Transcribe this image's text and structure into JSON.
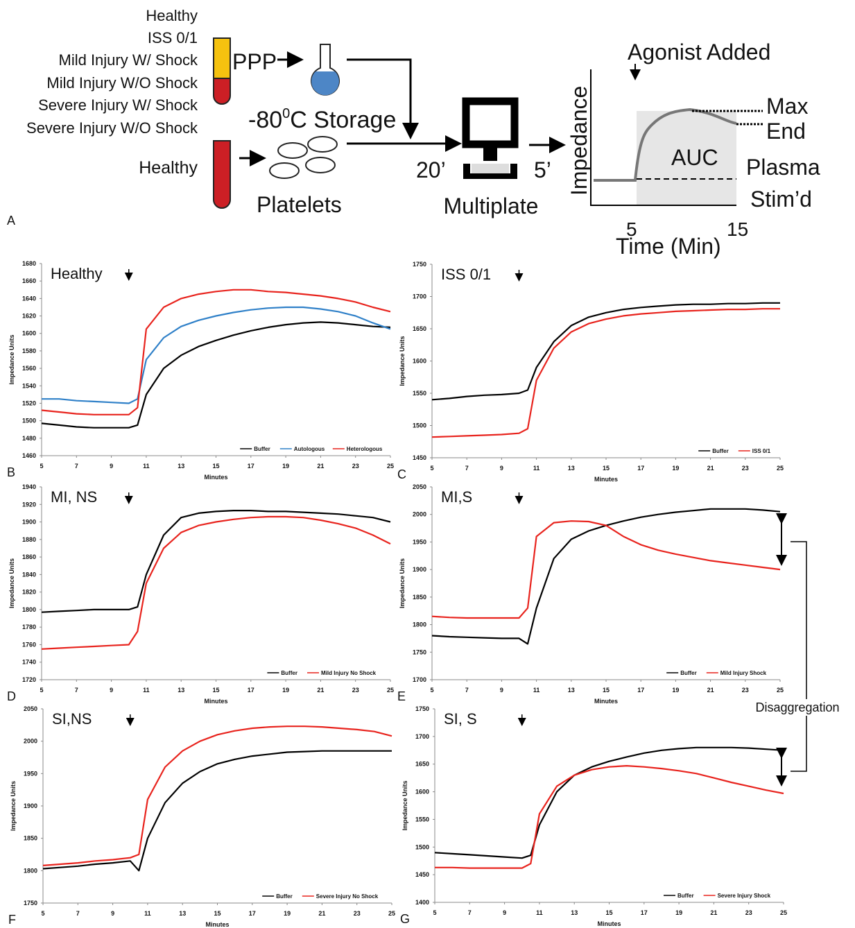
{
  "panel_a": {
    "label": "A",
    "groups": [
      "Healthy",
      "ISS 0/1",
      "Mild Injury W/ Shock",
      "Mild Injury W/O Shock",
      "Severe Injury W/ Shock",
      "Severe Injury W/O Shock"
    ],
    "ppp": "PPP",
    "storage": [
      "-80",
      "0",
      "C Storage"
    ],
    "donor": "Healthy",
    "platelets": "Platelets",
    "t1": "20’",
    "t2": "5’",
    "device": "Multiplate",
    "agonist": "Agonist Added",
    "inset_ylabel": "Impedance",
    "inset_xlabel": "Time (Min)",
    "inset_xticks": [
      "5",
      "15"
    ],
    "max": "Max",
    "end": "End",
    "auc": "AUC",
    "plasma": "Plasma",
    "stimd": "Stim’d"
  },
  "annotation": "Disaggregation",
  "chart_data": [
    {
      "type": "line",
      "title": "Healthy",
      "panel": "B",
      "xlabel": "Minutes",
      "ylabel": "Impedance Units",
      "x": [
        5,
        6,
        7,
        8,
        9,
        10,
        10.5,
        11,
        12,
        13,
        14,
        15,
        16,
        17,
        18,
        19,
        20,
        21,
        22,
        23,
        24,
        25
      ],
      "xlim": [
        5,
        25
      ],
      "xticks": [
        5,
        7,
        9,
        11,
        13,
        15,
        17,
        19,
        21,
        23,
        25
      ],
      "ylim": [
        1460,
        1680
      ],
      "yticks": [
        1460,
        1480,
        1500,
        1520,
        1540,
        1560,
        1580,
        1600,
        1620,
        1640,
        1660,
        1680
      ],
      "series": [
        {
          "name": "Buffer",
          "color": "#000000",
          "values": [
            1497,
            1495,
            1493,
            1492,
            1492,
            1492,
            1495,
            1530,
            1560,
            1575,
            1585,
            1592,
            1598,
            1603,
            1607,
            1610,
            1612,
            1613,
            1612,
            1610,
            1608,
            1607
          ]
        },
        {
          "name": "Autologous",
          "color": "#2f80c8",
          "values": [
            1525,
            1525,
            1523,
            1522,
            1521,
            1520,
            1525,
            1570,
            1595,
            1608,
            1615,
            1620,
            1624,
            1627,
            1629,
            1630,
            1630,
            1628,
            1625,
            1620,
            1612,
            1605
          ]
        },
        {
          "name": "Heterologous",
          "color": "#e8231d",
          "values": [
            1512,
            1510,
            1508,
            1507,
            1507,
            1507,
            1515,
            1605,
            1630,
            1640,
            1645,
            1648,
            1650,
            1650,
            1648,
            1647,
            1645,
            1643,
            1640,
            1636,
            1630,
            1625
          ]
        }
      ]
    },
    {
      "type": "line",
      "title": "ISS 0/1",
      "panel": "C",
      "xlabel": "Minutes",
      "ylabel": "Impedance Units",
      "x": [
        5,
        6,
        7,
        8,
        9,
        10,
        10.5,
        11,
        12,
        13,
        14,
        15,
        16,
        17,
        18,
        19,
        20,
        21,
        22,
        23,
        24,
        25
      ],
      "xlim": [
        5,
        25
      ],
      "xticks": [
        5,
        7,
        9,
        11,
        13,
        15,
        17,
        19,
        21,
        23,
        25
      ],
      "ylim": [
        1450,
        1750
      ],
      "yticks": [
        1450,
        1500,
        1550,
        1600,
        1650,
        1700,
        1750
      ],
      "series": [
        {
          "name": "Buffer",
          "color": "#000000",
          "values": [
            1540,
            1542,
            1545,
            1547,
            1548,
            1550,
            1555,
            1590,
            1630,
            1655,
            1668,
            1675,
            1680,
            1683,
            1685,
            1687,
            1688,
            1688,
            1689,
            1689,
            1690,
            1690
          ]
        },
        {
          "name": "ISS 0/1",
          "color": "#e8231d",
          "values": [
            1482,
            1483,
            1484,
            1485,
            1486,
            1488,
            1495,
            1570,
            1620,
            1645,
            1658,
            1665,
            1670,
            1673,
            1675,
            1677,
            1678,
            1679,
            1680,
            1680,
            1681,
            1681
          ]
        }
      ]
    },
    {
      "type": "line",
      "title": "MI, NS",
      "panel": "D",
      "xlabel": "Minutes",
      "ylabel": "Impedance Units",
      "x": [
        5,
        6,
        7,
        8,
        9,
        10,
        10.5,
        11,
        12,
        13,
        14,
        15,
        16,
        17,
        18,
        19,
        20,
        21,
        22,
        23,
        24,
        25
      ],
      "xlim": [
        5,
        25
      ],
      "xticks": [
        5,
        7,
        9,
        11,
        13,
        15,
        17,
        19,
        21,
        23,
        25
      ],
      "ylim": [
        1720,
        1940
      ],
      "yticks": [
        1720,
        1740,
        1760,
        1780,
        1800,
        1820,
        1840,
        1860,
        1880,
        1900,
        1920,
        1940
      ],
      "series": [
        {
          "name": "Buffer",
          "color": "#000000",
          "values": [
            1797,
            1798,
            1799,
            1800,
            1800,
            1800,
            1803,
            1840,
            1885,
            1905,
            1910,
            1912,
            1913,
            1913,
            1912,
            1912,
            1911,
            1910,
            1909,
            1907,
            1905,
            1900
          ]
        },
        {
          "name": "Mild Injury No Shock",
          "color": "#e8231d",
          "values": [
            1755,
            1756,
            1757,
            1758,
            1759,
            1760,
            1775,
            1830,
            1870,
            1888,
            1896,
            1900,
            1903,
            1905,
            1906,
            1906,
            1905,
            1902,
            1898,
            1893,
            1885,
            1875
          ]
        }
      ]
    },
    {
      "type": "line",
      "title": "MI,S",
      "panel": "E",
      "xlabel": "Minutes",
      "ylabel": "Impedance Units",
      "x": [
        5,
        6,
        7,
        8,
        9,
        10,
        10.5,
        11,
        12,
        13,
        14,
        15,
        16,
        17,
        18,
        19,
        20,
        21,
        22,
        23,
        24,
        25
      ],
      "xlim": [
        5,
        25
      ],
      "xticks": [
        5,
        7,
        9,
        11,
        13,
        15,
        17,
        19,
        21,
        23,
        25
      ],
      "ylim": [
        1700,
        2050
      ],
      "yticks": [
        1700,
        1750,
        1800,
        1850,
        1900,
        1950,
        2000,
        2050
      ],
      "series": [
        {
          "name": "Buffer",
          "color": "#000000",
          "values": [
            1780,
            1778,
            1777,
            1776,
            1775,
            1775,
            1765,
            1830,
            1920,
            1955,
            1970,
            1980,
            1988,
            1995,
            2000,
            2004,
            2007,
            2010,
            2010,
            2010,
            2008,
            2005
          ]
        },
        {
          "name": "Mild Injury Shock",
          "color": "#e8231d",
          "values": [
            1815,
            1813,
            1812,
            1812,
            1812,
            1812,
            1830,
            1960,
            1985,
            1988,
            1987,
            1980,
            1960,
            1945,
            1935,
            1928,
            1922,
            1916,
            1912,
            1908,
            1904,
            1900
          ]
        }
      ]
    },
    {
      "type": "line",
      "title": "SI,NS",
      "panel": "F",
      "xlabel": "Minutes",
      "ylabel": "Impedance Units",
      "x": [
        5,
        6,
        7,
        8,
        9,
        10,
        10.5,
        11,
        12,
        13,
        14,
        15,
        16,
        17,
        18,
        19,
        20,
        21,
        22,
        23,
        24,
        25
      ],
      "xlim": [
        5,
        25
      ],
      "xticks": [
        5,
        7,
        9,
        11,
        13,
        15,
        17,
        19,
        21,
        23,
        25
      ],
      "ylim": [
        1750,
        2050
      ],
      "yticks": [
        1750,
        1800,
        1850,
        1900,
        1950,
        2000,
        2050
      ],
      "series": [
        {
          "name": "Buffer",
          "color": "#000000",
          "values": [
            1803,
            1805,
            1807,
            1810,
            1812,
            1815,
            1800,
            1850,
            1905,
            1935,
            1953,
            1965,
            1972,
            1977,
            1980,
            1983,
            1984,
            1985,
            1985,
            1985,
            1985,
            1985
          ]
        },
        {
          "name": "Severe Injury No Shock",
          "color": "#e8231d",
          "values": [
            1808,
            1810,
            1812,
            1815,
            1817,
            1820,
            1825,
            1910,
            1960,
            1985,
            2000,
            2010,
            2016,
            2020,
            2022,
            2023,
            2023,
            2022,
            2020,
            2018,
            2015,
            2008
          ]
        }
      ]
    },
    {
      "type": "line",
      "title": "SI, S",
      "panel": "G",
      "xlabel": "Minutes",
      "ylabel": "Impedance Units",
      "x": [
        5,
        6,
        7,
        8,
        9,
        10,
        10.5,
        11,
        12,
        13,
        14,
        15,
        16,
        17,
        18,
        19,
        20,
        21,
        22,
        23,
        24,
        25
      ],
      "xlim": [
        5,
        25
      ],
      "xticks": [
        5,
        7,
        9,
        11,
        13,
        15,
        17,
        19,
        21,
        23,
        25
      ],
      "ylim": [
        1400,
        1750
      ],
      "yticks": [
        1400,
        1450,
        1500,
        1550,
        1600,
        1650,
        1700,
        1750
      ],
      "series": [
        {
          "name": "Buffer",
          "color": "#000000",
          "values": [
            1490,
            1488,
            1486,
            1484,
            1482,
            1480,
            1485,
            1540,
            1600,
            1630,
            1645,
            1655,
            1663,
            1670,
            1675,
            1678,
            1680,
            1680,
            1680,
            1679,
            1677,
            1675
          ]
        },
        {
          "name": "Severe Injury Shock",
          "color": "#e8231d",
          "values": [
            1463,
            1463,
            1462,
            1462,
            1462,
            1462,
            1470,
            1560,
            1610,
            1630,
            1640,
            1645,
            1647,
            1645,
            1642,
            1638,
            1633,
            1625,
            1617,
            1610,
            1603,
            1597
          ]
        }
      ]
    }
  ]
}
